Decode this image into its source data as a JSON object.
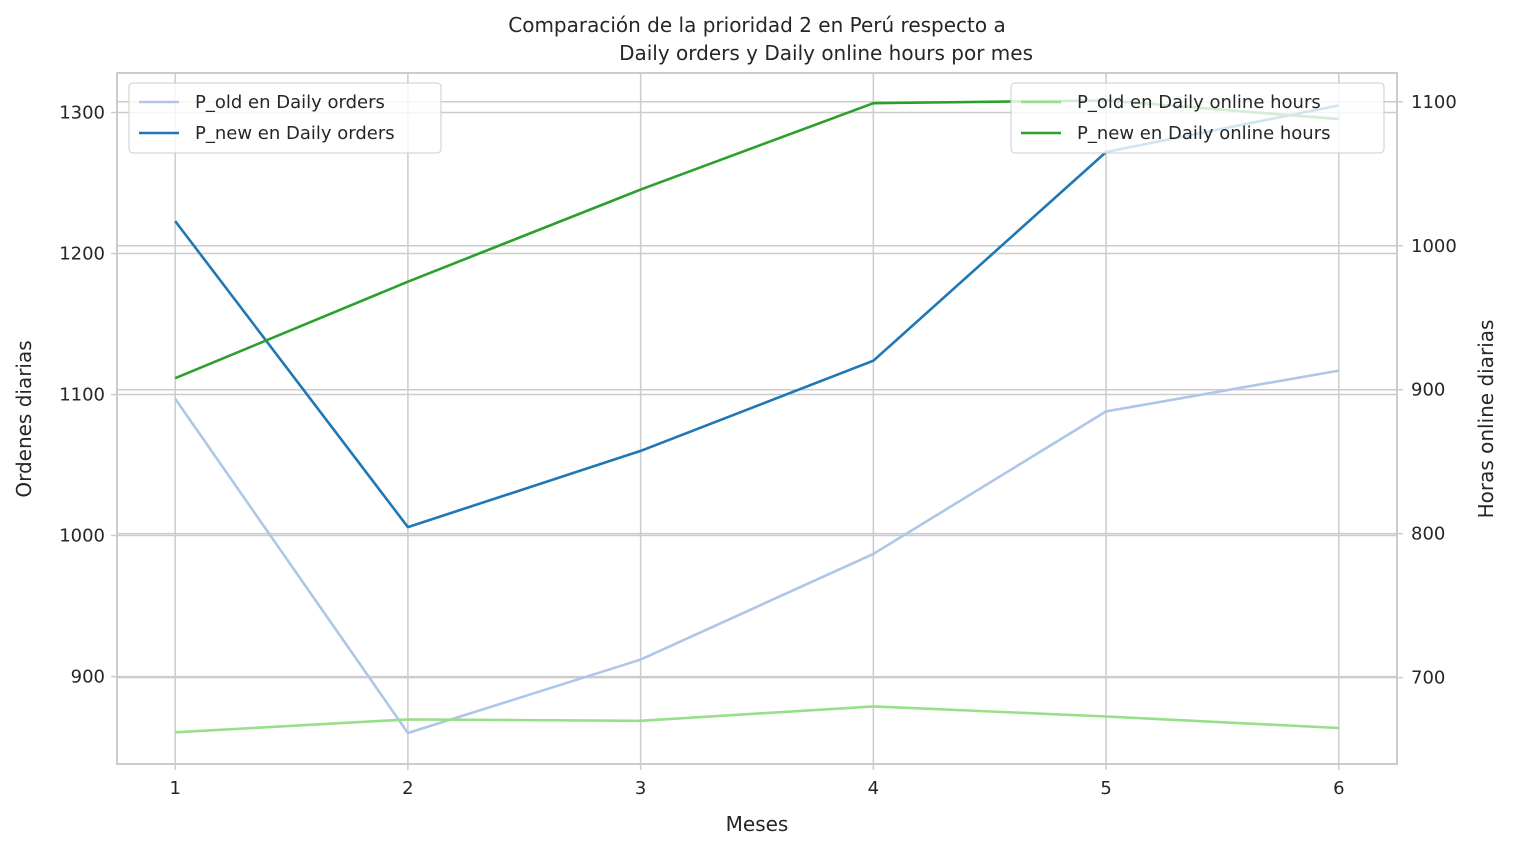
{
  "chart_data": {
    "type": "line",
    "title": [
      "Comparación de la prioridad 2 en Perú respecto a",
      "Daily orders y Daily online hours por mes"
    ],
    "xlabel": "Meses",
    "ylabel_left": "Ordenes diarias",
    "ylabel_right": "Horas online diarias",
    "x": [
      1,
      2,
      3,
      4,
      5,
      6
    ],
    "xlim": [
      0.75,
      6.25
    ],
    "ylim_left": [
      838,
      1328
    ],
    "ylim_right": [
      640,
      1120
    ],
    "yticks_left": [
      900,
      1000,
      1100,
      1200,
      1300
    ],
    "yticks_right": [
      700,
      800,
      900,
      1000,
      1100
    ],
    "grid": true,
    "series_left": [
      {
        "name": "P_old en Daily orders",
        "color": "#aec7e8",
        "values": [
          1097,
          860,
          912,
          987,
          1088,
          1117
        ]
      },
      {
        "name": "P_new en Daily orders",
        "color": "#1f77b4",
        "values": [
          1223,
          1006,
          1060,
          1124,
          1272,
          1305
        ]
      }
    ],
    "series_right": [
      {
        "name": "P_old en Daily online hours",
        "color": "#98df8a",
        "values": [
          662,
          671,
          670,
          680,
          673,
          665
        ]
      },
      {
        "name": "P_new en Daily online hours",
        "color": "#2ca02c",
        "values": [
          908,
          975,
          1039,
          1099,
          1101,
          1088
        ]
      }
    ],
    "legend_left_placement": "upper-left",
    "legend_right_placement": "upper-right"
  }
}
